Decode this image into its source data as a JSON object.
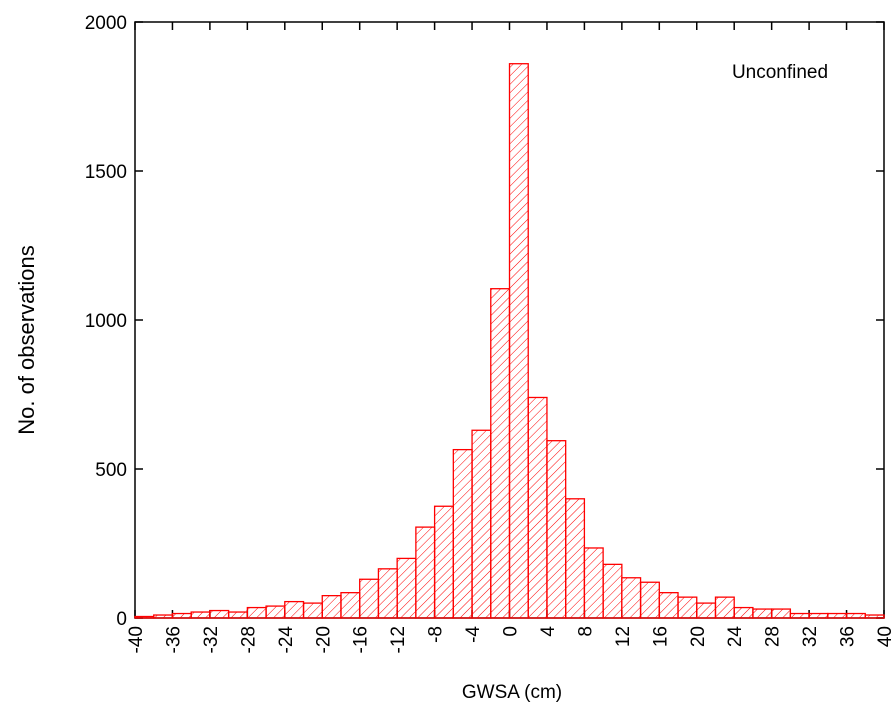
{
  "chart_data": {
    "type": "histogram",
    "x_label": "GWSA (cm)",
    "y_label": "No. of observations",
    "annotation": "Unconfined",
    "bins": [
      -40,
      -38,
      -36,
      -34,
      -32,
      -30,
      -28,
      -26,
      -24,
      -22,
      -20,
      -18,
      -16,
      -14,
      -12,
      -10,
      -8,
      -6,
      -4,
      -2,
      0,
      2,
      4,
      6,
      8,
      10,
      12,
      14,
      16,
      18,
      20,
      22,
      24,
      26,
      28,
      30,
      32,
      34,
      36,
      38,
      40
    ],
    "counts": [
      5,
      10,
      15,
      20,
      25,
      20,
      35,
      40,
      55,
      50,
      75,
      85,
      130,
      165,
      200,
      305,
      375,
      565,
      630,
      1105,
      1860,
      740,
      595,
      400,
      235,
      180,
      135,
      120,
      85,
      70,
      50,
      70,
      35,
      30,
      30,
      15,
      15,
      15,
      15,
      10
    ],
    "color": "#ff0000",
    "xlim": [
      -40,
      40
    ],
    "xticks": [
      -40,
      -36,
      -32,
      -28,
      -24,
      -20,
      -16,
      -12,
      -8,
      -4,
      0,
      4,
      8,
      12,
      16,
      20,
      24,
      28,
      32,
      36,
      40
    ],
    "ylim": [
      0,
      2000
    ],
    "yticks": [
      0,
      500,
      1000,
      1500,
      2000
    ]
  }
}
